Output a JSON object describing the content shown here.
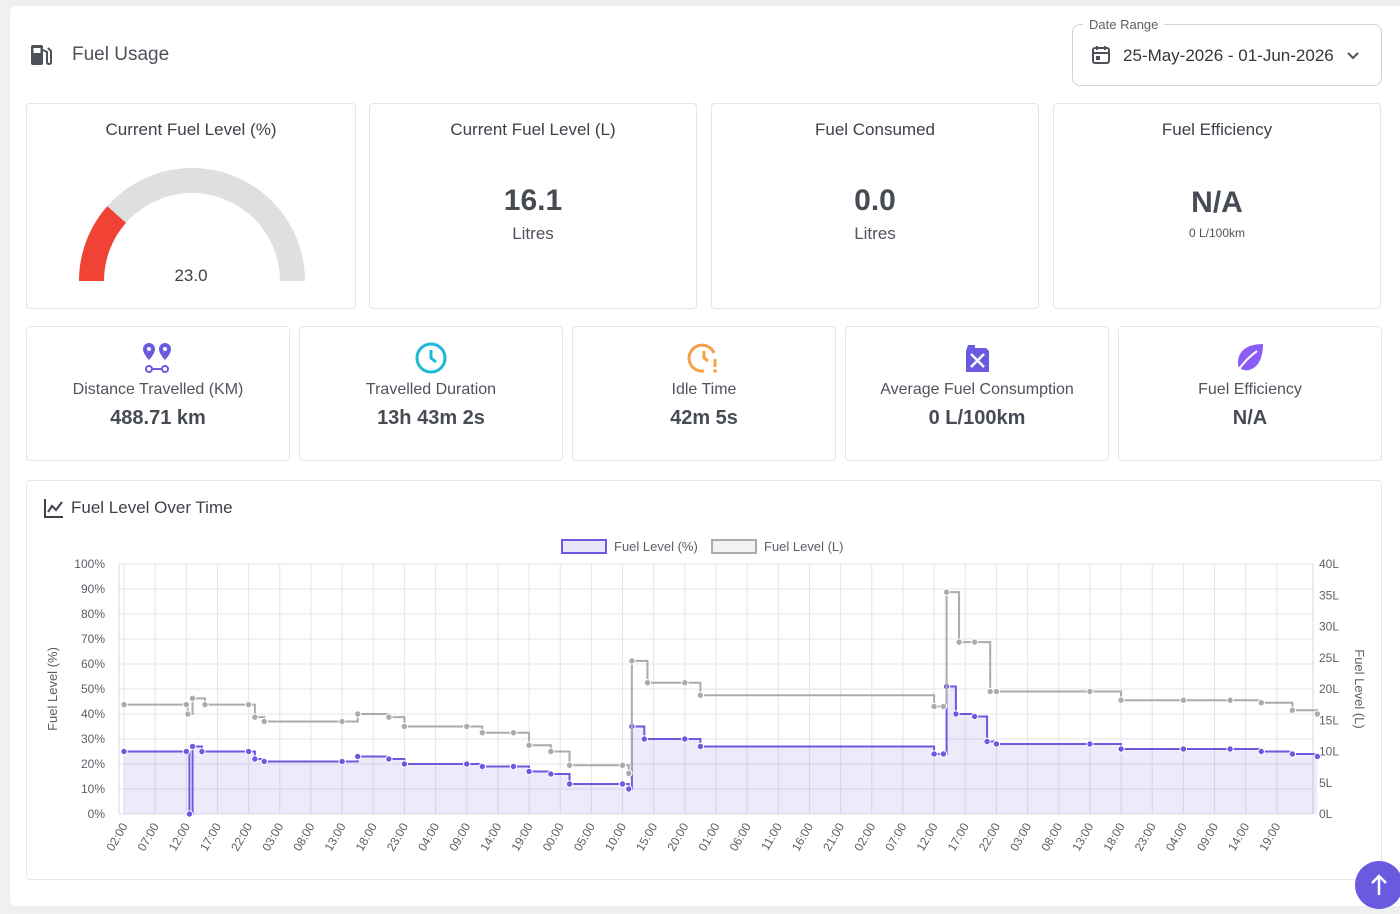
{
  "header": {
    "title": "Fuel Usage"
  },
  "date_range": {
    "label": "Date Range",
    "value": "25-May-2026 - 01-Jun-2026"
  },
  "cards": {
    "fuel_pct": {
      "title": "Current Fuel Level (%)",
      "value": "23.0",
      "gauge_fraction": 0.23
    },
    "fuel_l": {
      "title": "Current Fuel Level (L)",
      "value": "16.1",
      "unit": "Litres"
    },
    "consumed": {
      "title": "Fuel Consumed",
      "value": "0.0",
      "unit": "Litres"
    },
    "efficiency": {
      "title": "Fuel Efficiency",
      "value": "N/A",
      "unit": "0 L/100km"
    }
  },
  "stats": [
    {
      "label": "Distance Travelled (KM)",
      "value": "488.71 km",
      "icon": "route-pins-icon",
      "color": "#6a5ae0"
    },
    {
      "label": "Travelled Duration",
      "value": "13h 43m 2s",
      "icon": "clock-icon",
      "color": "#1fb8d6"
    },
    {
      "label": "Idle Time",
      "value": "42m 5s",
      "icon": "clock-alert-icon",
      "color": "#f5a04a"
    },
    {
      "label": "Average Fuel Consumption",
      "value": "0 L/100km",
      "icon": "fuel-can-icon",
      "color": "#6a5ae0"
    },
    {
      "label": "Fuel Efficiency",
      "value": "N/A",
      "icon": "leaf-icon",
      "color": "#8b5cf6"
    }
  ],
  "chart_title": "Fuel Level Over Time",
  "chart_data": {
    "type": "line",
    "legend": [
      "Fuel Level (%)",
      "Fuel Level (L)"
    ],
    "legend_position": "top",
    "ylabel_left": "Fuel Level (%)",
    "ylabel_right": "Fuel Level (L)",
    "y_left_ticks": [
      "0%",
      "10%",
      "20%",
      "30%",
      "40%",
      "50%",
      "60%",
      "70%",
      "80%",
      "90%",
      "100%"
    ],
    "y_right_ticks": [
      "0L",
      "5L",
      "10L",
      "15L",
      "20L",
      "25L",
      "30L",
      "35L",
      "40L"
    ],
    "ylim_left": [
      0,
      100
    ],
    "ylim_right": [
      0,
      40
    ],
    "x_ticks": [
      "02:00",
      "07:00",
      "12:00",
      "17:00",
      "22:00",
      "03:00",
      "08:00",
      "13:00",
      "18:00",
      "23:00",
      "04:00",
      "09:00",
      "14:00",
      "19:00",
      "00:00",
      "05:00",
      "10:00",
      "15:00",
      "20:00",
      "01:00",
      "06:00",
      "11:00",
      "16:00",
      "21:00",
      "02:00",
      "07:00",
      "12:00",
      "17:00",
      "22:00",
      "03:00",
      "08:00",
      "13:00",
      "18:00",
      "23:00",
      "04:00",
      "09:00",
      "14:00",
      "19:00"
    ],
    "series": [
      {
        "name": "Fuel Level (%)",
        "color": "#6a5ae0",
        "points": [
          [
            0,
            25
          ],
          [
            2,
            25
          ],
          [
            2.1,
            0
          ],
          [
            2.2,
            27
          ],
          [
            2.5,
            25
          ],
          [
            4,
            25
          ],
          [
            4.2,
            22
          ],
          [
            4.5,
            21
          ],
          [
            7,
            21
          ],
          [
            7.5,
            23
          ],
          [
            8.5,
            22
          ],
          [
            9,
            20
          ],
          [
            11,
            20
          ],
          [
            11.5,
            19
          ],
          [
            12.5,
            19
          ],
          [
            13,
            17
          ],
          [
            13.7,
            16
          ],
          [
            14.3,
            12
          ],
          [
            16,
            12
          ],
          [
            16.2,
            10
          ],
          [
            16.3,
            35
          ],
          [
            16.7,
            30
          ],
          [
            18,
            30
          ],
          [
            18.5,
            27
          ],
          [
            26,
            24
          ],
          [
            26.3,
            24
          ],
          [
            26.4,
            51
          ],
          [
            26.7,
            40
          ],
          [
            27.3,
            39
          ],
          [
            27.7,
            29
          ],
          [
            28,
            28
          ],
          [
            31,
            28
          ],
          [
            32,
            26
          ],
          [
            34,
            26
          ],
          [
            35.5,
            26
          ],
          [
            36.5,
            25
          ],
          [
            37.5,
            24
          ],
          [
            38.3,
            23
          ]
        ]
      },
      {
        "name": "Fuel Level (L)",
        "color": "#a9abb1",
        "points": [
          [
            0,
            17.5
          ],
          [
            2,
            17.5
          ],
          [
            2.05,
            16
          ],
          [
            2.2,
            18.5
          ],
          [
            2.6,
            17.5
          ],
          [
            4,
            17.5
          ],
          [
            4.2,
            15.5
          ],
          [
            4.5,
            14.8
          ],
          [
            7,
            14.8
          ],
          [
            7.5,
            16
          ],
          [
            8.5,
            15.5
          ],
          [
            9,
            14
          ],
          [
            11,
            14
          ],
          [
            11.5,
            13
          ],
          [
            12.5,
            13
          ],
          [
            13,
            11
          ],
          [
            13.7,
            10
          ],
          [
            14.3,
            7.8
          ],
          [
            16,
            7.8
          ],
          [
            16.2,
            6.5
          ],
          [
            16.3,
            24.5
          ],
          [
            16.8,
            21
          ],
          [
            18,
            21
          ],
          [
            18.5,
            19
          ],
          [
            26,
            17.2
          ],
          [
            26.3,
            17.2
          ],
          [
            26.4,
            35.5
          ],
          [
            26.8,
            27.5
          ],
          [
            27.3,
            27.5
          ],
          [
            27.8,
            19.6
          ],
          [
            28,
            19.6
          ],
          [
            31,
            19.6
          ],
          [
            32,
            18.2
          ],
          [
            34,
            18.2
          ],
          [
            35.5,
            18.2
          ],
          [
            36.5,
            17.8
          ],
          [
            37.5,
            16.6
          ],
          [
            38.3,
            16
          ]
        ]
      }
    ]
  }
}
